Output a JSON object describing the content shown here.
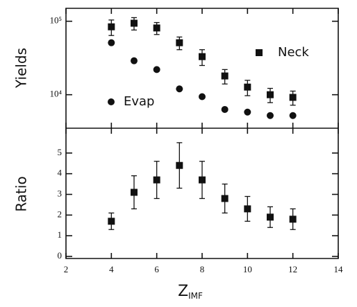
{
  "chart_data": [
    {
      "type": "scatter",
      "ylabel": "Yields",
      "log_y": true,
      "xlim": [
        2,
        14
      ],
      "xticks": [
        2,
        4,
        6,
        8,
        10,
        12,
        14
      ],
      "ylim": [
        3500,
        150000
      ],
      "yticks": [
        {
          "value": 10000,
          "label": "10⁴"
        },
        {
          "value": 100000,
          "label": "10⁵"
        }
      ],
      "x": [
        4,
        5,
        6,
        7,
        8,
        9,
        10,
        11,
        12
      ],
      "series": [
        {
          "name": "Neck",
          "marker": "square",
          "color": "#111",
          "values": [
            84000,
            94000,
            81000,
            51000,
            33000,
            18000,
            12700,
            10000,
            9200
          ],
          "errors": [
            20000,
            18000,
            15000,
            10000,
            8000,
            4000,
            3000,
            2200,
            2000
          ]
        },
        {
          "name": "Evap",
          "marker": "circle",
          "color": "#111",
          "values": [
            51000,
            29000,
            22000,
            12000,
            9400,
            6300,
            5800,
            5200,
            5200
          ]
        }
      ]
    },
    {
      "type": "scatter",
      "ylabel": "Ratio",
      "xlabel": "Z",
      "xlabel_sub": "IMF",
      "xlim": [
        2,
        14
      ],
      "xticks": [
        2,
        4,
        6,
        8,
        10,
        12,
        14
      ],
      "ylim": [
        -0.1,
        6.2
      ],
      "yticks": [
        0,
        1,
        2,
        3,
        4,
        5
      ],
      "x": [
        4,
        5,
        6,
        7,
        8,
        9,
        10,
        11,
        12
      ],
      "series": [
        {
          "marker": "square",
          "color": "#111",
          "values": [
            1.7,
            3.1,
            3.7,
            4.4,
            3.7,
            2.8,
            2.3,
            1.9,
            1.8
          ],
          "errors": [
            0.4,
            0.8,
            0.9,
            1.1,
            0.9,
            0.7,
            0.6,
            0.5,
            0.5
          ]
        }
      ]
    }
  ]
}
